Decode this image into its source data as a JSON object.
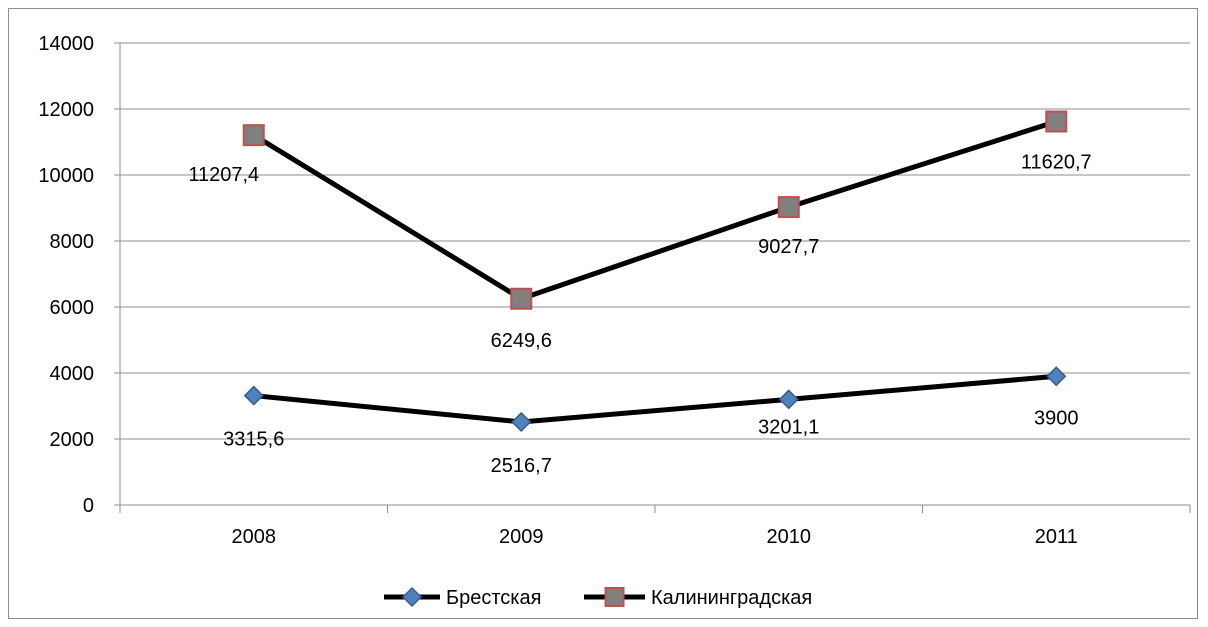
{
  "chart_data": {
    "type": "line",
    "title": "",
    "xlabel": "",
    "ylabel": "",
    "categories": [
      "2008",
      "2009",
      "2010",
      "2011"
    ],
    "ylim": [
      0,
      14000
    ],
    "yticks": [
      0,
      2000,
      4000,
      6000,
      8000,
      10000,
      12000,
      14000
    ],
    "grid": true,
    "legend": "bottom",
    "series": [
      {
        "name": "Брестская",
        "values": [
          3315.6,
          2516.7,
          3201.1,
          3900
        ],
        "labels": [
          "3315,6",
          "2516,7",
          "3201,1",
          "3900"
        ],
        "marker": "diamond",
        "line_color": "#000000",
        "marker_color": "#4f81bd"
      },
      {
        "name": "Калининградская",
        "values": [
          11207.4,
          6249.6,
          9027.7,
          11620.7
        ],
        "labels": [
          "11207,4",
          "6249,6",
          "9027,7",
          "11620,7"
        ],
        "marker": "square",
        "line_color": "#000000",
        "marker_color": "#808080",
        "marker_border": "#c0504d"
      }
    ]
  }
}
